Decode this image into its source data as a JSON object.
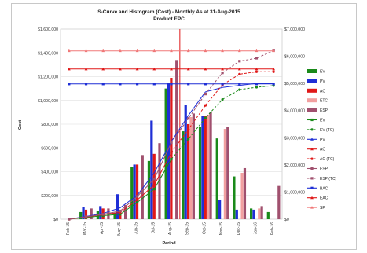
{
  "chart_data": {
    "type": "bar",
    "title": "S-Curve and Histogram (Cost) - Monthly As at 31-Aug-2015",
    "subtitle": "Product EPC",
    "xlabel": "Period",
    "ylabel": "Cost",
    "categories": [
      "Feb-15",
      "Mar-15",
      "Apr-15",
      "May-15",
      "Jun-15",
      "Jul-15",
      "Aug-15",
      "Sep-15",
      "Oct-15",
      "Nov-15",
      "Dec-15",
      "Jan-16",
      "Feb-16"
    ],
    "ylim": [
      0,
      1600000
    ],
    "y_ticks": [
      "$0",
      "$200,000",
      "$400,000",
      "$600,000",
      "$800,000",
      "$1,000,000",
      "$1,200,000",
      "$1,400,000",
      "$1,600,000"
    ],
    "y2lim": [
      0,
      7000000
    ],
    "y2_ticks": [
      "$0",
      "$1,000,000",
      "$2,000,000",
      "$3,000,000",
      "$4,000,000",
      "$5,000,000",
      "$6,000,000",
      "$7,000,000"
    ],
    "status_date_index": 6.5,
    "bar_series": [
      {
        "name": "EV",
        "color": "#1a8a1a",
        "values": [
          0,
          60000,
          70000,
          50000,
          440000,
          490000,
          1100000,
          740000,
          780000,
          680000,
          360000,
          90000,
          60000
        ]
      },
      {
        "name": "PV",
        "color": "#1f2fd6",
        "values": [
          0,
          100000,
          110000,
          210000,
          460000,
          830000,
          1150000,
          960000,
          870000,
          160000,
          80000,
          80000,
          0
        ]
      },
      {
        "name": "AC",
        "color": "#e01818",
        "values": [
          0,
          80000,
          90000,
          80000,
          460000,
          550000,
          1190000,
          800000,
          870000,
          0,
          0,
          0,
          0
        ]
      },
      {
        "name": "ETC",
        "color": "#f2a0a0",
        "values": [
          0,
          0,
          0,
          0,
          0,
          0,
          0,
          860000,
          880000,
          760000,
          390000,
          90000,
          0
        ]
      },
      {
        "name": "ESP",
        "color": "#a0506e",
        "values": [
          0,
          90000,
          90000,
          120000,
          540000,
          640000,
          1340000,
          890000,
          900000,
          780000,
          430000,
          110000,
          280000
        ]
      }
    ],
    "line_series": [
      {
        "name": "EV",
        "color": "#1a8a1a",
        "dashed": false,
        "marker": "square",
        "values": [
          0,
          60000,
          130000,
          180000,
          620000,
          1110000,
          2210000
        ]
      },
      {
        "name": "EV (TC)",
        "color": "#1a8a1a",
        "dashed": true,
        "marker": "circle",
        "values": [
          null,
          null,
          null,
          null,
          null,
          null,
          2210000,
          2950000,
          3730000,
          4410000,
          4770000,
          4860000,
          4920000
        ]
      },
      {
        "name": "PV",
        "color": "#1f2fd6",
        "dashed": false,
        "marker": "none",
        "values": [
          0,
          100000,
          210000,
          420000,
          880000,
          1710000,
          2860000,
          3820000,
          4690000,
          4850000,
          4930000,
          5000000,
          5000000
        ]
      },
      {
        "name": "AC",
        "color": "#e01818",
        "dashed": false,
        "marker": "square",
        "values": [
          0,
          80000,
          170000,
          250000,
          710000,
          1260000,
          2450000
        ]
      },
      {
        "name": "AC (TC)",
        "color": "#e01818",
        "dashed": true,
        "marker": "circle",
        "values": [
          null,
          null,
          null,
          null,
          null,
          null,
          2450000,
          3310000,
          4190000,
          4950000,
          5340000,
          5430000,
          5430000
        ]
      },
      {
        "name": "ESP",
        "color": "#a0506e",
        "dashed": false,
        "marker": "square",
        "values": [
          0,
          90000,
          180000,
          300000,
          840000,
          1480000,
          2820000
        ]
      },
      {
        "name": "ESP (TC)",
        "color": "#a0506e",
        "dashed": true,
        "marker": "square",
        "values": [
          null,
          null,
          null,
          null,
          null,
          null,
          2820000,
          3710000,
          4610000,
          5390000,
          5820000,
          5930000,
          6210000
        ]
      },
      {
        "name": "BAC",
        "color": "#1f2fd6",
        "dashed": false,
        "marker": "square",
        "values": [
          4980000,
          4980000,
          4980000,
          4980000,
          4980000,
          4980000,
          4980000,
          4980000,
          4980000,
          4980000,
          4980000,
          4980000,
          4980000
        ]
      },
      {
        "name": "EAC",
        "color": "#e01818",
        "dashed": false,
        "marker": "triangle",
        "values": [
          5530000,
          5530000,
          5530000,
          5530000,
          5530000,
          5530000,
          5530000,
          5530000,
          5530000,
          5530000,
          5530000,
          5530000,
          5530000
        ]
      },
      {
        "name": "SP",
        "color": "#f07878",
        "dashed": false,
        "marker": "triangle",
        "values": [
          6200000,
          6200000,
          6200000,
          6200000,
          6200000,
          6200000,
          6200000,
          6200000,
          6200000,
          6200000,
          6200000,
          6200000,
          6200000
        ]
      }
    ],
    "legend_position": "right",
    "legend": [
      {
        "label": "EV",
        "kind": "bar",
        "color": "#1a8a1a"
      },
      {
        "label": "PV",
        "kind": "bar",
        "color": "#1f2fd6"
      },
      {
        "label": "AC",
        "kind": "bar",
        "color": "#e01818"
      },
      {
        "label": "ETC",
        "kind": "bar",
        "color": "#f2a0a0"
      },
      {
        "label": "ESP",
        "kind": "bar",
        "color": "#a0506e"
      },
      {
        "label": "EV",
        "kind": "line",
        "color": "#1a8a1a",
        "dashed": false,
        "marker": "square"
      },
      {
        "label": "EV (TC)",
        "kind": "line",
        "color": "#1a8a1a",
        "dashed": true,
        "marker": "circle"
      },
      {
        "label": "PV",
        "kind": "line",
        "color": "#1f2fd6",
        "dashed": false,
        "marker": "triangle"
      },
      {
        "label": "AC",
        "kind": "line",
        "color": "#e01818",
        "dashed": false,
        "marker": "triangle"
      },
      {
        "label": "AC (TC)",
        "kind": "line",
        "color": "#e01818",
        "dashed": true,
        "marker": "circle"
      },
      {
        "label": "ESP",
        "kind": "line",
        "color": "#a0506e",
        "dashed": false,
        "marker": "square"
      },
      {
        "label": "ESP (TC)",
        "kind": "line",
        "color": "#a0506e",
        "dashed": true,
        "marker": "square"
      },
      {
        "label": "BAC",
        "kind": "line",
        "color": "#1f2fd6",
        "dashed": false,
        "marker": "square"
      },
      {
        "label": "EAC",
        "kind": "line",
        "color": "#e01818",
        "dashed": false,
        "marker": "triangle"
      },
      {
        "label": "SP",
        "kind": "line",
        "color": "#f07878",
        "dashed": false,
        "marker": "triangle"
      }
    ],
    "grid": true
  }
}
